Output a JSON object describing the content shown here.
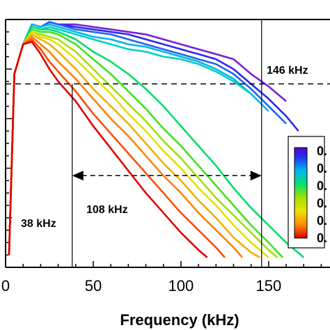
{
  "chart_data": {
    "type": "line",
    "xlabel": "Frequency (kHz)",
    "xlim": [
      0,
      185
    ],
    "xticks": [
      0,
      50,
      100,
      150
    ],
    "xtick_labels": [
      "0",
      "50",
      "100",
      "150"
    ],
    "ylim": [
      0,
      1
    ],
    "grid": false,
    "threshold_y": 0.74,
    "vlines": [
      38,
      146
    ],
    "annotations": {
      "left_freq": "38 kHz",
      "right_freq": "146 kHz",
      "bandwidth": "108 kHz"
    },
    "bandwidth_arrow": {
      "from": 38,
      "to": 146,
      "y": 0.37
    },
    "colorbar": {
      "colors": [
        "#5a00c8",
        "#2030f0",
        "#00b4f0",
        "#00e070",
        "#a0e000",
        "#f0e000",
        "#ff8c00",
        "#e00000"
      ],
      "labels": [
        "0.",
        "0.",
        "0.",
        "0.",
        "0.",
        "0."
      ]
    },
    "series": [
      {
        "color": "#7a1fd6",
        "values": [
          [
            2,
            0.05
          ],
          [
            5,
            0.78
          ],
          [
            10,
            0.9
          ],
          [
            15,
            0.98
          ],
          [
            20,
            0.97
          ],
          [
            25,
            0.99
          ],
          [
            30,
            0.98
          ],
          [
            40,
            0.98
          ],
          [
            50,
            0.97
          ],
          [
            60,
            0.96
          ],
          [
            70,
            0.95
          ],
          [
            80,
            0.94
          ],
          [
            90,
            0.92
          ],
          [
            100,
            0.9
          ],
          [
            110,
            0.88
          ],
          [
            120,
            0.86
          ],
          [
            130,
            0.84
          ],
          [
            140,
            0.78
          ],
          [
            150,
            0.73
          ],
          [
            160,
            0.67
          ]
        ]
      },
      {
        "color": "#2a2af0",
        "values": [
          [
            2,
            0.05
          ],
          [
            5,
            0.78
          ],
          [
            10,
            0.9
          ],
          [
            15,
            0.98
          ],
          [
            20,
            0.97
          ],
          [
            25,
            0.99
          ],
          [
            30,
            0.98
          ],
          [
            40,
            0.97
          ],
          [
            50,
            0.96
          ],
          [
            60,
            0.95
          ],
          [
            70,
            0.94
          ],
          [
            80,
            0.92
          ],
          [
            90,
            0.9
          ],
          [
            100,
            0.88
          ],
          [
            110,
            0.86
          ],
          [
            120,
            0.84
          ],
          [
            130,
            0.8
          ],
          [
            140,
            0.74
          ],
          [
            150,
            0.68
          ],
          [
            160,
            0.61
          ],
          [
            167,
            0.55
          ]
        ]
      },
      {
        "color": "#1e64f0",
        "values": [
          [
            2,
            0.05
          ],
          [
            5,
            0.78
          ],
          [
            10,
            0.9
          ],
          [
            15,
            0.98
          ],
          [
            20,
            0.97
          ],
          [
            25,
            0.99
          ],
          [
            30,
            0.98
          ],
          [
            40,
            0.96
          ],
          [
            50,
            0.95
          ],
          [
            60,
            0.94
          ],
          [
            70,
            0.92
          ],
          [
            80,
            0.9
          ],
          [
            90,
            0.88
          ],
          [
            100,
            0.86
          ],
          [
            110,
            0.84
          ],
          [
            120,
            0.82
          ],
          [
            130,
            0.78
          ],
          [
            140,
            0.72
          ],
          [
            150,
            0.65
          ],
          [
            160,
            0.58
          ]
        ]
      },
      {
        "color": "#00b4f0",
        "values": [
          [
            2,
            0.05
          ],
          [
            5,
            0.78
          ],
          [
            10,
            0.9
          ],
          [
            15,
            0.98
          ],
          [
            20,
            0.97
          ],
          [
            25,
            0.98
          ],
          [
            30,
            0.97
          ],
          [
            40,
            0.95
          ],
          [
            50,
            0.93
          ],
          [
            60,
            0.92
          ],
          [
            70,
            0.9
          ],
          [
            80,
            0.89
          ],
          [
            90,
            0.87
          ],
          [
            100,
            0.85
          ],
          [
            110,
            0.83
          ],
          [
            120,
            0.8
          ],
          [
            130,
            0.76
          ],
          [
            140,
            0.7
          ],
          [
            150,
            0.63
          ]
        ]
      },
      {
        "color": "#00d0c0",
        "values": [
          [
            2,
            0.05
          ],
          [
            5,
            0.78
          ],
          [
            10,
            0.9
          ],
          [
            15,
            0.97
          ],
          [
            20,
            0.96
          ],
          [
            25,
            0.97
          ],
          [
            30,
            0.96
          ],
          [
            40,
            0.94
          ],
          [
            50,
            0.92
          ],
          [
            60,
            0.9
          ],
          [
            70,
            0.88
          ],
          [
            80,
            0.87
          ],
          [
            90,
            0.85
          ],
          [
            100,
            0.84
          ],
          [
            110,
            0.82
          ],
          [
            120,
            0.79
          ],
          [
            130,
            0.75
          ],
          [
            140,
            0.7
          ]
        ]
      },
      {
        "color": "#00dc6a",
        "values": [
          [
            2,
            0.05
          ],
          [
            5,
            0.78
          ],
          [
            10,
            0.9
          ],
          [
            15,
            0.97
          ],
          [
            20,
            0.96
          ],
          [
            25,
            0.96
          ],
          [
            30,
            0.95
          ],
          [
            40,
            0.92
          ],
          [
            50,
            0.87
          ],
          [
            60,
            0.83
          ],
          [
            70,
            0.78
          ],
          [
            80,
            0.72
          ],
          [
            90,
            0.65
          ],
          [
            100,
            0.57
          ],
          [
            110,
            0.49
          ],
          [
            120,
            0.41
          ],
          [
            130,
            0.32
          ],
          [
            140,
            0.24
          ],
          [
            150,
            0.17
          ],
          [
            160,
            0.1
          ],
          [
            170,
            0.04
          ]
        ]
      },
      {
        "color": "#44e020",
        "values": [
          [
            2,
            0.05
          ],
          [
            5,
            0.78
          ],
          [
            10,
            0.9
          ],
          [
            15,
            0.96
          ],
          [
            20,
            0.95
          ],
          [
            25,
            0.95
          ],
          [
            30,
            0.94
          ],
          [
            40,
            0.9
          ],
          [
            50,
            0.84
          ],
          [
            60,
            0.78
          ],
          [
            70,
            0.71
          ],
          [
            80,
            0.64
          ],
          [
            90,
            0.56
          ],
          [
            100,
            0.49
          ],
          [
            110,
            0.41
          ],
          [
            120,
            0.33
          ],
          [
            130,
            0.25
          ],
          [
            140,
            0.17
          ],
          [
            150,
            0.1
          ],
          [
            158,
            0.04
          ]
        ]
      },
      {
        "color": "#a0e000",
        "values": [
          [
            2,
            0.05
          ],
          [
            5,
            0.78
          ],
          [
            10,
            0.9
          ],
          [
            15,
            0.95
          ],
          [
            20,
            0.94
          ],
          [
            25,
            0.93
          ],
          [
            30,
            0.92
          ],
          [
            40,
            0.87
          ],
          [
            50,
            0.8
          ],
          [
            60,
            0.73
          ],
          [
            70,
            0.66
          ],
          [
            80,
            0.59
          ],
          [
            90,
            0.51
          ],
          [
            100,
            0.44
          ],
          [
            110,
            0.36
          ],
          [
            120,
            0.28
          ],
          [
            130,
            0.21
          ],
          [
            140,
            0.14
          ],
          [
            150,
            0.07
          ],
          [
            155,
            0.04
          ]
        ]
      },
      {
        "color": "#e0e000",
        "values": [
          [
            2,
            0.05
          ],
          [
            5,
            0.78
          ],
          [
            10,
            0.9
          ],
          [
            15,
            0.95
          ],
          [
            20,
            0.93
          ],
          [
            25,
            0.92
          ],
          [
            30,
            0.9
          ],
          [
            40,
            0.84
          ],
          [
            50,
            0.77
          ],
          [
            60,
            0.7
          ],
          [
            70,
            0.62
          ],
          [
            80,
            0.55
          ],
          [
            90,
            0.47
          ],
          [
            100,
            0.4
          ],
          [
            110,
            0.32
          ],
          [
            120,
            0.25
          ],
          [
            130,
            0.17
          ],
          [
            140,
            0.1
          ],
          [
            150,
            0.04
          ]
        ]
      },
      {
        "color": "#f0b000",
        "values": [
          [
            2,
            0.05
          ],
          [
            5,
            0.78
          ],
          [
            10,
            0.9
          ],
          [
            15,
            0.94
          ],
          [
            20,
            0.92
          ],
          [
            25,
            0.9
          ],
          [
            30,
            0.87
          ],
          [
            40,
            0.8
          ],
          [
            50,
            0.72
          ],
          [
            60,
            0.65
          ],
          [
            70,
            0.58
          ],
          [
            80,
            0.5
          ],
          [
            90,
            0.42
          ],
          [
            100,
            0.35
          ],
          [
            110,
            0.27
          ],
          [
            120,
            0.2
          ],
          [
            130,
            0.12
          ],
          [
            140,
            0.06
          ],
          [
            145,
            0.04
          ]
        ]
      },
      {
        "color": "#ff8000",
        "values": [
          [
            2,
            0.05
          ],
          [
            5,
            0.78
          ],
          [
            10,
            0.9
          ],
          [
            15,
            0.93
          ],
          [
            20,
            0.9
          ],
          [
            25,
            0.87
          ],
          [
            30,
            0.83
          ],
          [
            40,
            0.76
          ],
          [
            50,
            0.68
          ],
          [
            60,
            0.6
          ],
          [
            70,
            0.53
          ],
          [
            80,
            0.45
          ],
          [
            90,
            0.37
          ],
          [
            100,
            0.3
          ],
          [
            110,
            0.22
          ],
          [
            120,
            0.15
          ],
          [
            130,
            0.08
          ],
          [
            135,
            0.04
          ]
        ]
      },
      {
        "color": "#ff4a00",
        "values": [
          [
            2,
            0.05
          ],
          [
            5,
            0.78
          ],
          [
            10,
            0.9
          ],
          [
            15,
            0.92
          ],
          [
            20,
            0.88
          ],
          [
            25,
            0.83
          ],
          [
            30,
            0.79
          ],
          [
            40,
            0.71
          ],
          [
            50,
            0.62
          ],
          [
            60,
            0.54
          ],
          [
            70,
            0.46
          ],
          [
            80,
            0.38
          ],
          [
            90,
            0.3
          ],
          [
            100,
            0.22
          ],
          [
            110,
            0.15
          ],
          [
            120,
            0.08
          ],
          [
            125,
            0.04
          ]
        ]
      },
      {
        "color": "#e00000",
        "values": [
          [
            2,
            0.05
          ],
          [
            5,
            0.78
          ],
          [
            10,
            0.9
          ],
          [
            15,
            0.91
          ],
          [
            20,
            0.86
          ],
          [
            25,
            0.8
          ],
          [
            30,
            0.75
          ],
          [
            40,
            0.67
          ],
          [
            50,
            0.57
          ],
          [
            60,
            0.48
          ],
          [
            70,
            0.39
          ],
          [
            80,
            0.3
          ],
          [
            90,
            0.22
          ],
          [
            100,
            0.14
          ],
          [
            110,
            0.07
          ],
          [
            115,
            0.04
          ]
        ]
      }
    ]
  }
}
